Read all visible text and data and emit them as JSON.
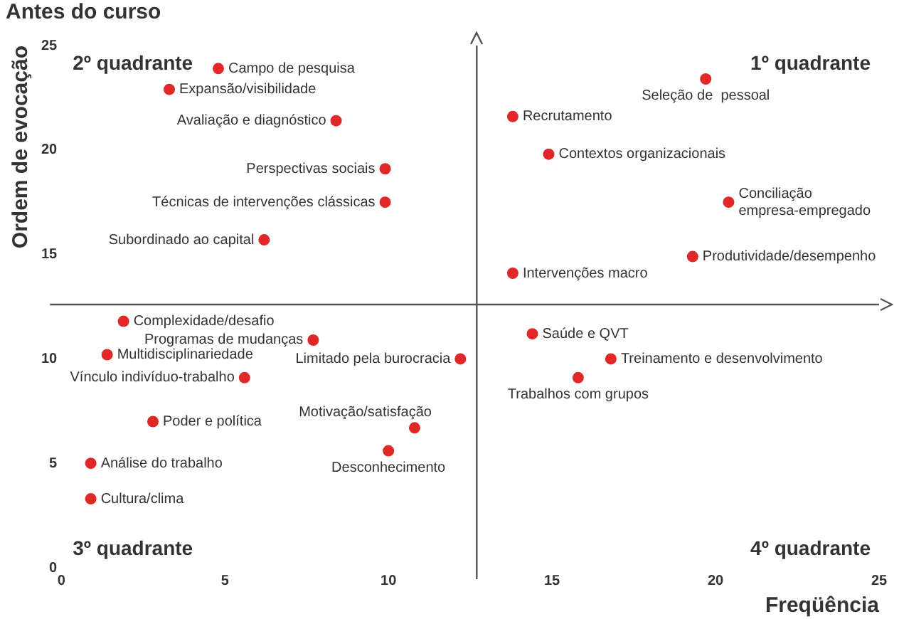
{
  "chart_data": {
    "type": "scatter",
    "title": "Antes do curso",
    "xlabel": "Freqüência",
    "ylabel": "Ordem de evocação",
    "xlim": [
      0,
      25
    ],
    "ylim": [
      0,
      25
    ],
    "xticks": [
      0,
      5,
      10,
      15,
      20,
      25
    ],
    "yticks": [
      0,
      5,
      10,
      15,
      20,
      25
    ],
    "grid": false,
    "legend": false,
    "marker": "circle",
    "ref_lines": [
      {
        "axis": "x",
        "value": 12.7,
        "color": "#555555"
      },
      {
        "axis": "y",
        "value": 12.6,
        "color": "#555555"
      }
    ],
    "annotations": [
      "2º quadrante",
      "1º quadrante",
      "3º quadrante",
      "4º quadrante"
    ],
    "series": [
      {
        "name": "Campo de pesquisa",
        "color": "#e02828",
        "x": [
          4.8
        ],
        "values": [
          23.9
        ]
      },
      {
        "name": "Expansão/visibilidade",
        "color": "#e02828",
        "x": [
          3.3
        ],
        "values": [
          22.9
        ]
      },
      {
        "name": "Avaliação e diagnóstico",
        "color": "#e02828",
        "x": [
          8.4
        ],
        "values": [
          21.4
        ]
      },
      {
        "name": "Perspectivas sociais",
        "color": "#e02828",
        "x": [
          9.9
        ],
        "values": [
          19.1
        ]
      },
      {
        "name": "Técnicas de intervenções clássicas",
        "color": "#e02828",
        "x": [
          9.9
        ],
        "values": [
          17.5
        ]
      },
      {
        "name": "Subordinado ao capital",
        "color": "#e02828",
        "x": [
          6.2
        ],
        "values": [
          15.7
        ]
      },
      {
        "name": "Seleção de  pessoal",
        "color": "#e02828",
        "x": [
          19.7
        ],
        "values": [
          23.4
        ]
      },
      {
        "name": "Recrutamento",
        "color": "#e02828",
        "x": [
          13.8
        ],
        "values": [
          21.6
        ]
      },
      {
        "name": "Contextos organizacionais",
        "color": "#e02828",
        "x": [
          14.9
        ],
        "values": [
          19.8
        ]
      },
      {
        "name": "Conciliação empresa-empregado",
        "color": "#e02828",
        "x": [
          20.4
        ],
        "values": [
          17.5
        ]
      },
      {
        "name": "Produtividade/desempenho",
        "color": "#e02828",
        "x": [
          19.3
        ],
        "values": [
          14.9
        ]
      },
      {
        "name": "Intervenções macro",
        "color": "#e02828",
        "x": [
          13.8
        ],
        "values": [
          14.1
        ]
      },
      {
        "name": "Complexidade/desafio",
        "color": "#e02828",
        "x": [
          1.9
        ],
        "values": [
          11.8
        ]
      },
      {
        "name": "Programas de mudanças",
        "color": "#e02828",
        "x": [
          7.7
        ],
        "values": [
          10.9
        ]
      },
      {
        "name": "Multidisciplinariedade",
        "color": "#e02828",
        "x": [
          1.4
        ],
        "values": [
          10.2
        ]
      },
      {
        "name": "Vínculo indivíduo-trabalho",
        "color": "#e02828",
        "x": [
          5.6
        ],
        "values": [
          9.1
        ]
      },
      {
        "name": "Limitado pela burocracia",
        "color": "#e02828",
        "x": [
          12.2
        ],
        "values": [
          10
        ]
      },
      {
        "name": "Poder e política",
        "color": "#e02828",
        "x": [
          2.8
        ],
        "values": [
          7
        ]
      },
      {
        "name": "Motivação/satisfação",
        "color": "#e02828",
        "x": [
          10.8
        ],
        "values": [
          6.7
        ]
      },
      {
        "name": "Desconhecimento",
        "color": "#e02828",
        "x": [
          10
        ],
        "values": [
          5.6
        ]
      },
      {
        "name": "Análise do trabalho",
        "color": "#e02828",
        "x": [
          0.9
        ],
        "values": [
          5
        ]
      },
      {
        "name": "Cultura/clima",
        "color": "#e02828",
        "x": [
          0.9
        ],
        "values": [
          3.3
        ]
      },
      {
        "name": "Saúde e QVT",
        "color": "#e02828",
        "x": [
          14.4
        ],
        "values": [
          11.2
        ]
      },
      {
        "name": "Treinamento e desenvolvimento",
        "color": "#e02828",
        "x": [
          16.8
        ],
        "values": [
          10
        ]
      },
      {
        "name": "Trabalhos com grupos",
        "color": "#e02828",
        "x": [
          15.8
        ],
        "values": [
          9.1
        ]
      }
    ]
  }
}
